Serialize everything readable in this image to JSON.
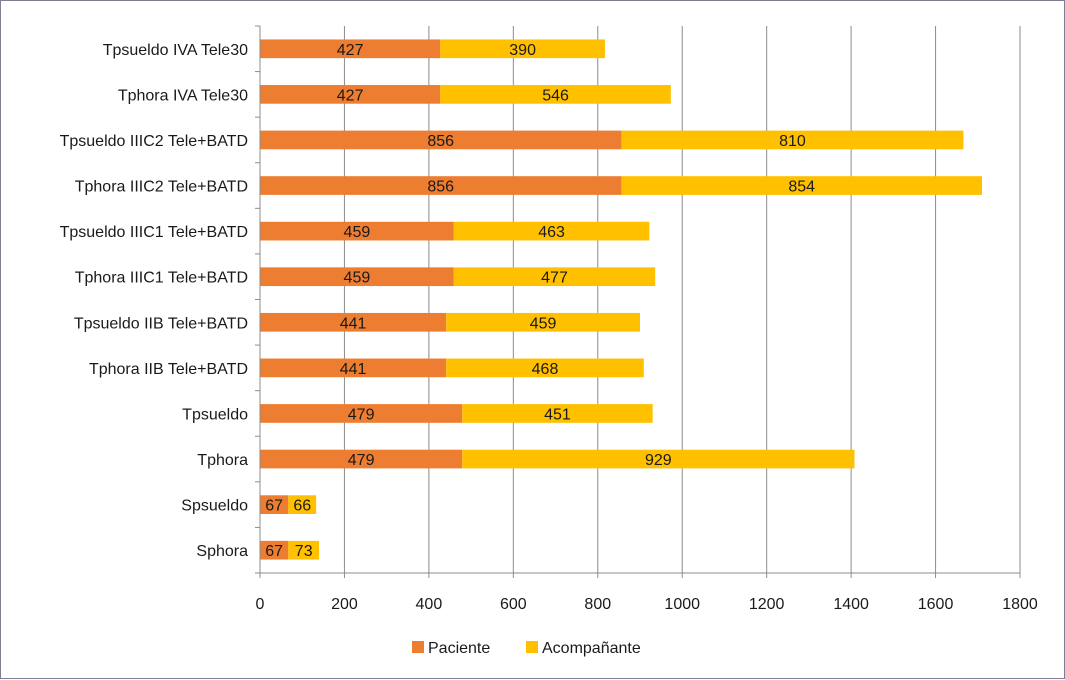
{
  "chart_data": {
    "type": "bar",
    "orientation": "horizontal",
    "stacked": true,
    "title": "",
    "xlabel": "",
    "ylabel": "",
    "xlim": [
      0,
      1800
    ],
    "x_ticks": [
      0,
      200,
      400,
      600,
      800,
      1000,
      1200,
      1400,
      1600,
      1800
    ],
    "grid": true,
    "legend_position": "bottom",
    "categories": [
      "Tpsueldo IVA Tele30",
      "Tphora IVA Tele30",
      "Tpsueldo IIIC2 Tele+BATD",
      "Tphora IIIC2 Tele+BATD",
      "Tpsueldo IIIC1 Tele+BATD",
      "Tphora IIIC1 Tele+BATD",
      "Tpsueldo IIB Tele+BATD",
      "Tphora IIB Tele+BATD",
      "Tpsueldo",
      "Tphora",
      "Spsueldo",
      "Sphora"
    ],
    "series": [
      {
        "name": "Paciente",
        "color": "#ed7d31",
        "values": [
          427,
          427,
          856,
          856,
          459,
          459,
          441,
          441,
          479,
          479,
          67,
          67
        ]
      },
      {
        "name": "Acompañante",
        "color": "#ffc000",
        "values": [
          390,
          546,
          810,
          854,
          463,
          477,
          459,
          468,
          451,
          929,
          66,
          73
        ]
      }
    ]
  }
}
